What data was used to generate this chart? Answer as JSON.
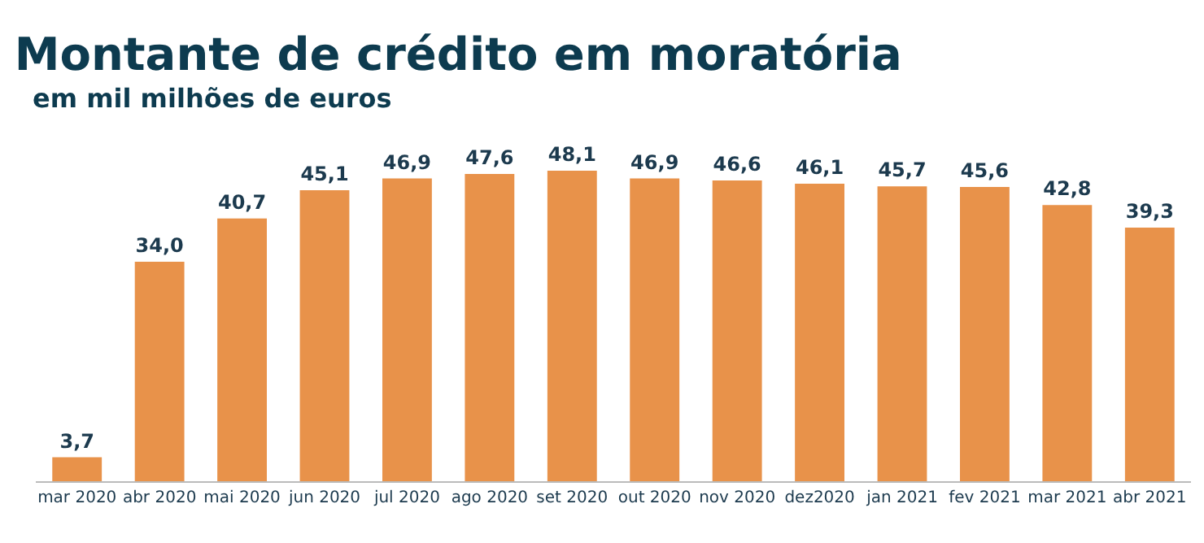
{
  "chart_data": {
    "type": "bar",
    "title": "Montante de crédito em moratória",
    "subtitle": "em mil milhões de euros",
    "categories": [
      "mar 2020",
      "abr 2020",
      "mai 2020",
      "jun 2020",
      "jul 2020",
      "ago 2020",
      "set 2020",
      "out 2020",
      "nov 2020",
      "dez2020",
      "jan 2021",
      "fev 2021",
      "mar 2021",
      "abr 2021"
    ],
    "values": [
      3.7,
      34.0,
      40.7,
      45.1,
      46.9,
      47.6,
      48.1,
      46.9,
      46.6,
      46.1,
      45.7,
      45.6,
      42.8,
      39.3
    ],
    "value_labels": [
      "3,7",
      "34,0",
      "40,7",
      "45,1",
      "46,9",
      "47,6",
      "48,1",
      "46,9",
      "46,6",
      "46,1",
      "45,7",
      "45,6",
      "42,8",
      "39,3"
    ],
    "color": "#e8924a",
    "grid": false,
    "legend": false
  }
}
